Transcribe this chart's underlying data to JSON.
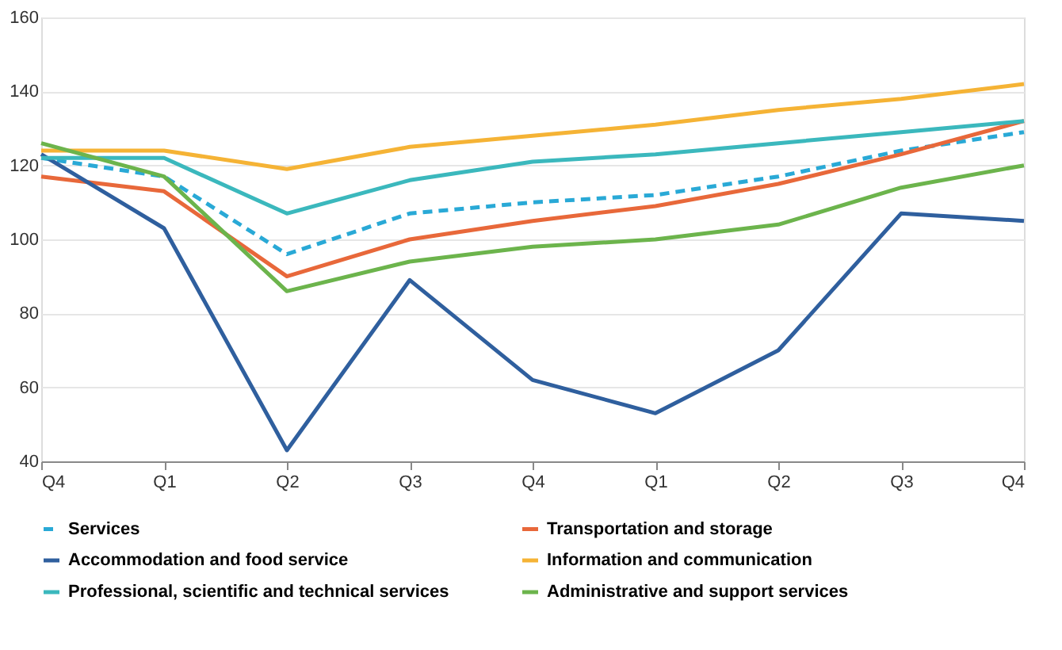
{
  "chart_data": {
    "type": "line",
    "categories": [
      "Q4",
      "Q1",
      "Q2",
      "Q3",
      "Q4",
      "Q1",
      "Q2",
      "Q3",
      "Q4"
    ],
    "series": [
      {
        "name": "Services",
        "color": "#29a9d6",
        "line_style": "dashed",
        "values": [
          122,
          117,
          96,
          107,
          110,
          112,
          117,
          124,
          129
        ]
      },
      {
        "name": "Transportation and storage",
        "color": "#e8683a",
        "values": [
          117,
          113,
          90,
          100,
          105,
          109,
          115,
          123,
          132
        ]
      },
      {
        "name": "Accommodation and food service",
        "color": "#2f5f9e",
        "values": [
          123,
          103,
          43,
          89,
          62,
          53,
          70,
          107,
          105
        ]
      },
      {
        "name": "Information and communication",
        "color": "#f5b335",
        "values": [
          124,
          124,
          119,
          125,
          128,
          131,
          135,
          138,
          142
        ]
      },
      {
        "name": "Professional, scientific and technical services",
        "color": "#3bb8bd",
        "values": [
          122,
          122,
          107,
          116,
          121,
          123,
          126,
          129,
          132
        ]
      },
      {
        "name": "Administrative and support services",
        "color": "#6cb44c",
        "values": [
          126,
          117,
          86,
          94,
          98,
          100,
          104,
          114,
          120
        ]
      }
    ],
    "ylim": [
      40,
      160
    ],
    "yticks": [
      40,
      60,
      80,
      100,
      120,
      140,
      160
    ],
    "grid": "y",
    "legend": "bottom",
    "line_style": "solid",
    "marker": "none"
  }
}
